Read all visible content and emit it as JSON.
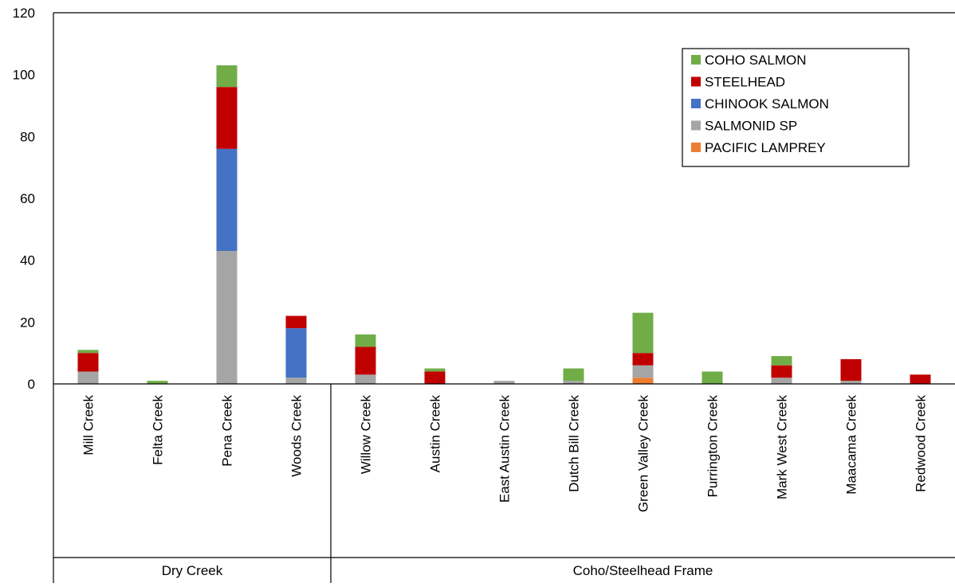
{
  "chart_data": {
    "type": "bar",
    "stacked": true,
    "title": "",
    "xlabel": "",
    "ylabel": "",
    "ylim": [
      0,
      120
    ],
    "yticks": [
      0,
      20,
      40,
      60,
      80,
      100,
      120
    ],
    "grid": false,
    "legend_position": "top-right",
    "categories": [
      "Mill Creek",
      "Felta Creek",
      "Pena Creek",
      "Woods Creek",
      "Willow Creek",
      "Austin Creek",
      "East Austin Creek",
      "Dutch Bill Creek",
      "Green Valley Creek",
      "Purrington Creek",
      "Mark West Creek",
      "Maacama Creek",
      "Redwood Creek"
    ],
    "groups": [
      {
        "label": "Dry Creek",
        "count": 4
      },
      {
        "label": "Coho/Steelhead Frame",
        "count": 9
      }
    ],
    "series": [
      {
        "name": "PACIFIC LAMPREY",
        "color": "#ED7D31",
        "values": [
          0,
          0,
          0,
          0,
          0,
          0,
          0,
          0,
          2,
          0,
          0,
          0,
          0
        ]
      },
      {
        "name": "SALMONID SP",
        "color": "#A5A5A5",
        "values": [
          4,
          0,
          43,
          2,
          3,
          0,
          1,
          1,
          4,
          0,
          2,
          1,
          0
        ]
      },
      {
        "name": "CHINOOK SALMON",
        "color": "#4472C4",
        "values": [
          0,
          0,
          33,
          16,
          0,
          0,
          0,
          0,
          0,
          0,
          0,
          0,
          0
        ]
      },
      {
        "name": "STEELHEAD",
        "color": "#C00000",
        "values": [
          6,
          0,
          20,
          4,
          9,
          4,
          0,
          0,
          4,
          0,
          4,
          7,
          3
        ]
      },
      {
        "name": "COHO SALMON",
        "color": "#70AD47",
        "values": [
          1,
          1,
          7,
          0,
          4,
          1,
          0,
          4,
          13,
          4,
          3,
          0,
          0
        ]
      }
    ],
    "legend_order": [
      "COHO SALMON",
      "STEELHEAD",
      "CHINOOK SALMON",
      "SALMONID SP",
      "PACIFIC LAMPREY"
    ]
  }
}
